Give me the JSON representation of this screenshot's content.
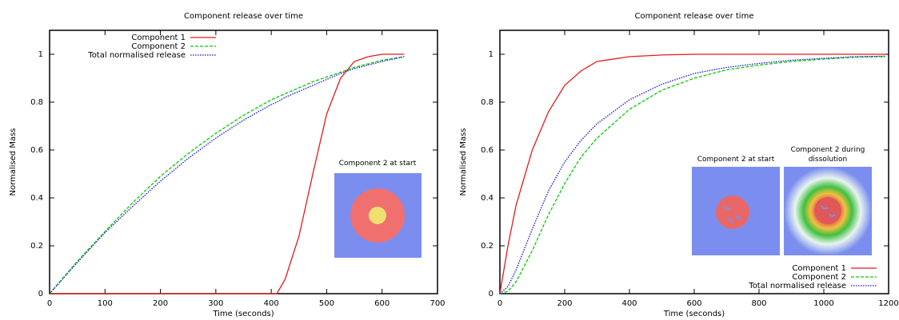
{
  "chart_data": [
    {
      "type": "line",
      "title": "Component release over time",
      "xlabel": "Time (seconds)",
      "ylabel": "Normalised Mass",
      "x": [
        0,
        50,
        100,
        150,
        200,
        250,
        300,
        350,
        400,
        410,
        425,
        450,
        475,
        500,
        525,
        550,
        575,
        600,
        640
      ],
      "series": [
        {
          "name": "Component 1",
          "color": "#e41a1c",
          "style": "solid",
          "values": [
            0,
            0,
            0,
            0,
            0,
            0,
            0,
            0,
            0,
            0,
            0.06,
            0.24,
            0.5,
            0.75,
            0.9,
            0.97,
            0.99,
            1.0,
            1.0
          ]
        },
        {
          "name": "Component 2",
          "color": "#00cc00",
          "style": "dashed",
          "values": [
            0,
            0.135,
            0.26,
            0.38,
            0.49,
            0.585,
            0.67,
            0.745,
            0.81,
            0.82,
            0.835,
            0.86,
            0.885,
            0.905,
            0.925,
            0.945,
            0.96,
            0.975,
            0.99
          ]
        },
        {
          "name": "Total normalised release",
          "color": "#1010d0",
          "style": "dotted",
          "values": [
            0,
            0.13,
            0.255,
            0.365,
            0.47,
            0.565,
            0.65,
            0.725,
            0.79,
            0.8,
            0.82,
            0.845,
            0.87,
            0.895,
            0.92,
            0.94,
            0.955,
            0.97,
            0.99
          ]
        }
      ],
      "xlim": [
        0,
        700
      ],
      "xticks": [
        0,
        100,
        200,
        300,
        400,
        500,
        600,
        700
      ],
      "ylim": [
        0,
        1.1
      ],
      "yticks": [
        0,
        0.2,
        0.4,
        0.6,
        0.8,
        1
      ],
      "legend": "top left",
      "annotations": [
        "Component 2 at start"
      ]
    },
    {
      "type": "line",
      "title": "Component release over time",
      "xlabel": "Time (seconds)",
      "ylabel": "Normalised Mass",
      "x": [
        0,
        25,
        50,
        100,
        150,
        200,
        250,
        300,
        400,
        500,
        600,
        700,
        800,
        900,
        1000,
        1100,
        1190
      ],
      "series": [
        {
          "name": "Component 1",
          "color": "#e41a1c",
          "style": "solid",
          "values": [
            0,
            0.2,
            0.37,
            0.6,
            0.76,
            0.87,
            0.93,
            0.97,
            0.99,
            0.997,
            1.0,
            1.0,
            1.0,
            1.0,
            1.0,
            1.0,
            1.0
          ]
        },
        {
          "name": "Component 2",
          "color": "#00cc00",
          "style": "dashed",
          "values": [
            0,
            0.01,
            0.05,
            0.18,
            0.33,
            0.46,
            0.57,
            0.65,
            0.77,
            0.85,
            0.9,
            0.935,
            0.955,
            0.97,
            0.98,
            0.988,
            0.99
          ]
        },
        {
          "name": "Total normalised release",
          "color": "#1010d0",
          "style": "dotted",
          "values": [
            0,
            0.03,
            0.1,
            0.27,
            0.43,
            0.55,
            0.64,
            0.71,
            0.81,
            0.875,
            0.92,
            0.945,
            0.962,
            0.975,
            0.983,
            0.99,
            0.992
          ]
        }
      ],
      "xlim": [
        0,
        1200
      ],
      "xticks": [
        0,
        200,
        400,
        600,
        800,
        1000,
        1200
      ],
      "ylim": [
        0,
        1.1
      ],
      "yticks": [
        0,
        0.2,
        0.4,
        0.6,
        0.8,
        1
      ],
      "legend": "bottom right",
      "annotations": [
        "Component 2 at start",
        "Component 2 during dissolution"
      ]
    }
  ]
}
